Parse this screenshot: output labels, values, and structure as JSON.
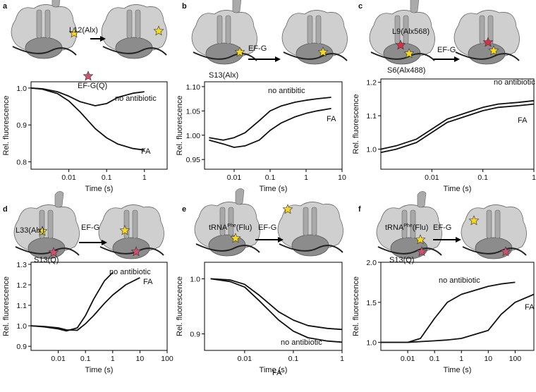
{
  "chart_data": [
    {
      "type": "line",
      "panel_label": "a",
      "annotations": [
        "L12(Alx)",
        "EF-G(Q)"
      ],
      "xlabel": "Time (s)",
      "ylabel": "Rel. fluorescence",
      "log_x": true,
      "x": [
        0.001,
        0.002,
        0.005,
        0.01,
        0.02,
        0.05,
        0.1,
        0.2,
        0.5,
        1
      ],
      "series": [
        {
          "name": "no antibiotic",
          "color": "#111111",
          "values": [
            1.0,
            0.998,
            0.99,
            0.978,
            0.963,
            0.952,
            0.958,
            0.975,
            0.986,
            0.99
          ]
        },
        {
          "name": "FA",
          "color": "#111111",
          "values": [
            1.0,
            0.997,
            0.985,
            0.965,
            0.935,
            0.89,
            0.865,
            0.848,
            0.836,
            0.832
          ]
        }
      ],
      "xlim": [
        0.001,
        4
      ],
      "xticks": [
        0.01,
        0.1,
        1
      ],
      "ylim": [
        0.78,
        1.017
      ],
      "yticks": [
        {
          "value": 0.8,
          "label": "0.8"
        },
        {
          "value": 0.9,
          "label": "0.9"
        },
        {
          "value": 1.0,
          "label": "1.0"
        }
      ]
    },
    {
      "type": "line",
      "panel_label": "b",
      "annotations": [
        "EF-G",
        "S13(Alx)"
      ],
      "xlabel": "Time (s)",
      "ylabel": "Rel. fluorescence",
      "log_x": true,
      "x": [
        0.002,
        0.005,
        0.01,
        0.02,
        0.05,
        0.1,
        0.2,
        0.5,
        1,
        2,
        5
      ],
      "series": [
        {
          "name": "no antibitic",
          "color": "#111111",
          "values": [
            0.995,
            0.99,
            0.995,
            1.005,
            1.03,
            1.05,
            1.06,
            1.068,
            1.072,
            1.075,
            1.078
          ]
        },
        {
          "name": "FA",
          "color": "#111111",
          "values": [
            0.99,
            0.982,
            0.975,
            0.978,
            0.99,
            1.01,
            1.025,
            1.038,
            1.045,
            1.05,
            1.055
          ]
        }
      ],
      "xlim": [
        0.0015,
        10
      ],
      "xticks": [
        0.01,
        0.1,
        1,
        10
      ],
      "ylim": [
        0.93,
        1.11
      ],
      "yticks": [
        {
          "value": 0.95,
          "label": "0.95"
        },
        {
          "value": 1.0,
          "label": "1.00"
        },
        {
          "value": 1.05,
          "label": "1.05"
        },
        {
          "value": 1.1,
          "label": "1.10"
        }
      ]
    },
    {
      "type": "line",
      "panel_label": "c",
      "annotations": [
        "L9(Alx568)",
        "EF-G",
        "S6(Alx488)"
      ],
      "xlabel": "Time (s)",
      "ylabel": "Rel. fluorescence",
      "log_x": true,
      "x": [
        0.001,
        0.002,
        0.005,
        0.01,
        0.02,
        0.05,
        0.1,
        0.2,
        0.5,
        1
      ],
      "series": [
        {
          "name": "no antibiotic",
          "color": "#111111",
          "values": [
            1.0,
            1.01,
            1.03,
            1.06,
            1.09,
            1.11,
            1.125,
            1.135,
            1.14,
            1.145
          ]
        },
        {
          "name": "FA",
          "color": "#111111",
          "values": [
            0.99,
            1.0,
            1.02,
            1.05,
            1.08,
            1.1,
            1.115,
            1.125,
            1.13,
            1.135
          ]
        }
      ],
      "xlim": [
        0.001,
        1
      ],
      "xticks": [
        0.01,
        0.1,
        1
      ],
      "ylim": [
        0.94,
        1.21
      ],
      "yticks": [
        {
          "value": 1.0,
          "label": "1.0"
        },
        {
          "value": 1.1,
          "label": "1.1"
        },
        {
          "value": 1.2,
          "label": "1.2"
        }
      ]
    },
    {
      "type": "line",
      "panel_label": "d",
      "annotations": [
        "L33(Alx)",
        "EF-G",
        "S13(Q)"
      ],
      "xlabel": "Time (s)",
      "ylabel": "Rel. fluorescence",
      "log_x": true,
      "x": [
        0.001,
        0.003,
        0.01,
        0.02,
        0.05,
        0.1,
        0.2,
        0.5,
        1,
        3,
        10
      ],
      "series": [
        {
          "name": "no antibiotic",
          "color": "#111111",
          "values": [
            1.0,
            0.995,
            0.985,
            0.975,
            0.99,
            1.05,
            1.13,
            1.22,
            1.26,
            null,
            null
          ]
        },
        {
          "name": "FA",
          "color": "#111111",
          "values": [
            1.0,
            0.997,
            0.99,
            0.98,
            0.978,
            1.01,
            1.05,
            1.11,
            1.15,
            1.2,
            1.235
          ]
        }
      ],
      "xlim": [
        0.001,
        100
      ],
      "xticks": [
        0.01,
        0.1,
        1,
        10,
        100
      ],
      "ylim": [
        0.88,
        1.31
      ],
      "yticks": [
        {
          "value": 0.9,
          "label": "0.9"
        },
        {
          "value": 1.0,
          "label": "1.0"
        },
        {
          "value": 1.1,
          "label": "1.1"
        },
        {
          "value": 1.2,
          "label": "1.2"
        },
        {
          "value": 1.3,
          "label": "1.3"
        }
      ]
    },
    {
      "type": "line",
      "panel_label": "e",
      "annotations": [
        {
          "base": "tRNA",
          "sup": "Phe",
          "tail": "(Flu)"
        },
        "EF-G"
      ],
      "xlabel": "Time (s)",
      "ylabel": "Rel. fluorescence",
      "log_x": true,
      "x": [
        0.002,
        0.005,
        0.01,
        0.02,
        0.05,
        0.1,
        0.2,
        0.5,
        1
      ],
      "series": [
        {
          "name": "no antibiotic",
          "color": "#111111",
          "values": [
            1.0,
            0.998,
            0.99,
            0.97,
            0.94,
            0.925,
            0.915,
            0.91,
            0.908
          ]
        },
        {
          "name": "FA",
          "color": "#111111",
          "values": [
            1.0,
            0.995,
            0.985,
            0.96,
            0.925,
            0.905,
            0.893,
            0.887,
            0.885
          ]
        }
      ],
      "xlim": [
        0.0015,
        1
      ],
      "xticks": [
        0.01,
        0.1,
        1
      ],
      "ylim": [
        0.87,
        1.03
      ],
      "yticks": [
        {
          "value": 0.9,
          "label": "0.9"
        },
        {
          "value": 1.0,
          "label": "1.0"
        }
      ]
    },
    {
      "type": "line",
      "panel_label": "f",
      "annotations": [
        {
          "base": "tRNA",
          "sup": "Phe",
          "tail": "(Flu)"
        },
        "EF-G",
        "S13(Q)"
      ],
      "xlabel": "Time (s)",
      "ylabel": "Rel. fluorescence",
      "log_x": true,
      "x": [
        0.001,
        0.01,
        0.03,
        0.1,
        0.3,
        1,
        10,
        30,
        100,
        500
      ],
      "series": [
        {
          "name": "no antibiotic",
          "color": "#111111",
          "values": [
            1.0,
            1.0,
            1.05,
            1.3,
            1.5,
            1.6,
            1.7,
            1.73,
            1.75,
            null
          ]
        },
        {
          "name": "FA",
          "color": "#111111",
          "values": [
            1.0,
            1.0,
            1.01,
            1.02,
            1.03,
            1.05,
            1.15,
            1.35,
            1.5,
            1.6
          ]
        }
      ],
      "xlim": [
        0.001,
        500
      ],
      "xticks": [
        0.01,
        0.1,
        1,
        10,
        100
      ],
      "ylim": [
        0.9,
        2.0
      ],
      "yticks": [
        {
          "value": 1.0,
          "label": "1.0"
        },
        {
          "value": 1.5,
          "label": "1.5"
        },
        {
          "value": 2.0,
          "label": "2.0"
        }
      ]
    }
  ]
}
